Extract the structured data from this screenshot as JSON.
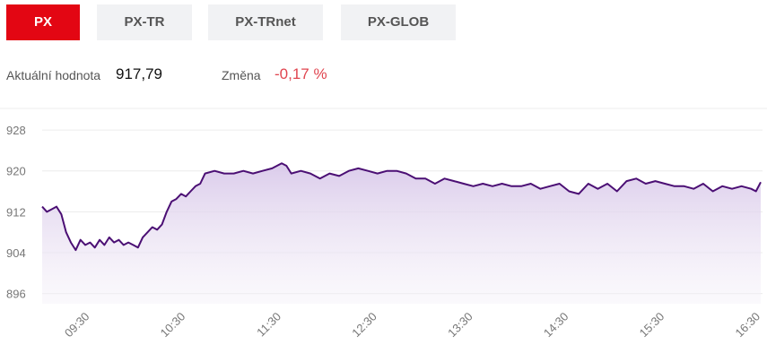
{
  "tabs": [
    {
      "label": "PX",
      "active": true
    },
    {
      "label": "PX-TR",
      "active": false
    },
    {
      "label": "PX-TRnet",
      "active": false
    },
    {
      "label": "PX-GLOB",
      "active": false
    }
  ],
  "summary": {
    "current_label": "Aktuální hodnota",
    "current_value": "917,79",
    "change_label": "Změna",
    "change_value": "-0,17 %"
  },
  "colors": {
    "accent": "#e30613",
    "line": "#4b0f74",
    "fill_top": "#d9c9ea",
    "change_negative": "#e0454f"
  },
  "chart_data": {
    "type": "area",
    "yticks": [
      896,
      904,
      912,
      920,
      928
    ],
    "ylim": [
      894,
      931
    ],
    "xlim": [
      9.0,
      16.5
    ],
    "xticks": [
      "09:30",
      "10:30",
      "11:30",
      "12:30",
      "13:30",
      "14:30",
      "15:30",
      "16:30"
    ],
    "xtick_values": [
      9.5,
      10.5,
      11.5,
      12.5,
      13.5,
      14.5,
      15.5,
      16.5
    ],
    "x": [
      9.0,
      9.05,
      9.1,
      9.15,
      9.2,
      9.25,
      9.3,
      9.35,
      9.4,
      9.45,
      9.5,
      9.55,
      9.6,
      9.65,
      9.7,
      9.75,
      9.8,
      9.85,
      9.9,
      9.95,
      10.0,
      10.05,
      10.1,
      10.15,
      10.2,
      10.25,
      10.3,
      10.35,
      10.4,
      10.45,
      10.5,
      10.55,
      10.6,
      10.65,
      10.7,
      10.8,
      10.9,
      11.0,
      11.1,
      11.2,
      11.3,
      11.4,
      11.5,
      11.55,
      11.6,
      11.7,
      11.8,
      11.9,
      12.0,
      12.1,
      12.2,
      12.3,
      12.4,
      12.5,
      12.6,
      12.7,
      12.8,
      12.9,
      13.0,
      13.1,
      13.2,
      13.3,
      13.4,
      13.5,
      13.6,
      13.7,
      13.8,
      13.9,
      14.0,
      14.1,
      14.2,
      14.3,
      14.4,
      14.5,
      14.6,
      14.7,
      14.8,
      14.9,
      15.0,
      15.1,
      15.2,
      15.3,
      15.4,
      15.5,
      15.6,
      15.7,
      15.8,
      15.9,
      16.0,
      16.1,
      16.2,
      16.3,
      16.4,
      16.45,
      16.5
    ],
    "y": [
      913,
      912,
      912.5,
      913,
      911.5,
      908,
      906,
      904.5,
      906.5,
      905.5,
      906,
      905,
      906.5,
      905.5,
      907,
      906,
      906.5,
      905.5,
      906,
      905.5,
      905,
      907,
      908,
      909,
      908.5,
      909.5,
      912,
      914,
      914.5,
      915.5,
      915,
      916,
      917,
      917.5,
      919.5,
      920,
      919.5,
      919.5,
      920,
      919.5,
      920,
      920.5,
      921.5,
      921,
      919.5,
      920,
      919.5,
      918.5,
      919.5,
      919,
      920,
      920.5,
      920,
      919.5,
      920,
      920,
      919.5,
      918.5,
      918.5,
      917.5,
      918.5,
      918,
      917.5,
      917,
      917.5,
      917,
      917.5,
      917,
      917,
      917.5,
      916.5,
      917,
      917.5,
      916,
      915.5,
      917.5,
      916.5,
      917.5,
      916,
      918,
      918.5,
      917.5,
      918,
      917.5,
      917,
      917,
      916.5,
      917.5,
      916,
      917,
      916.5,
      917,
      916.5,
      916,
      917.8
    ]
  }
}
